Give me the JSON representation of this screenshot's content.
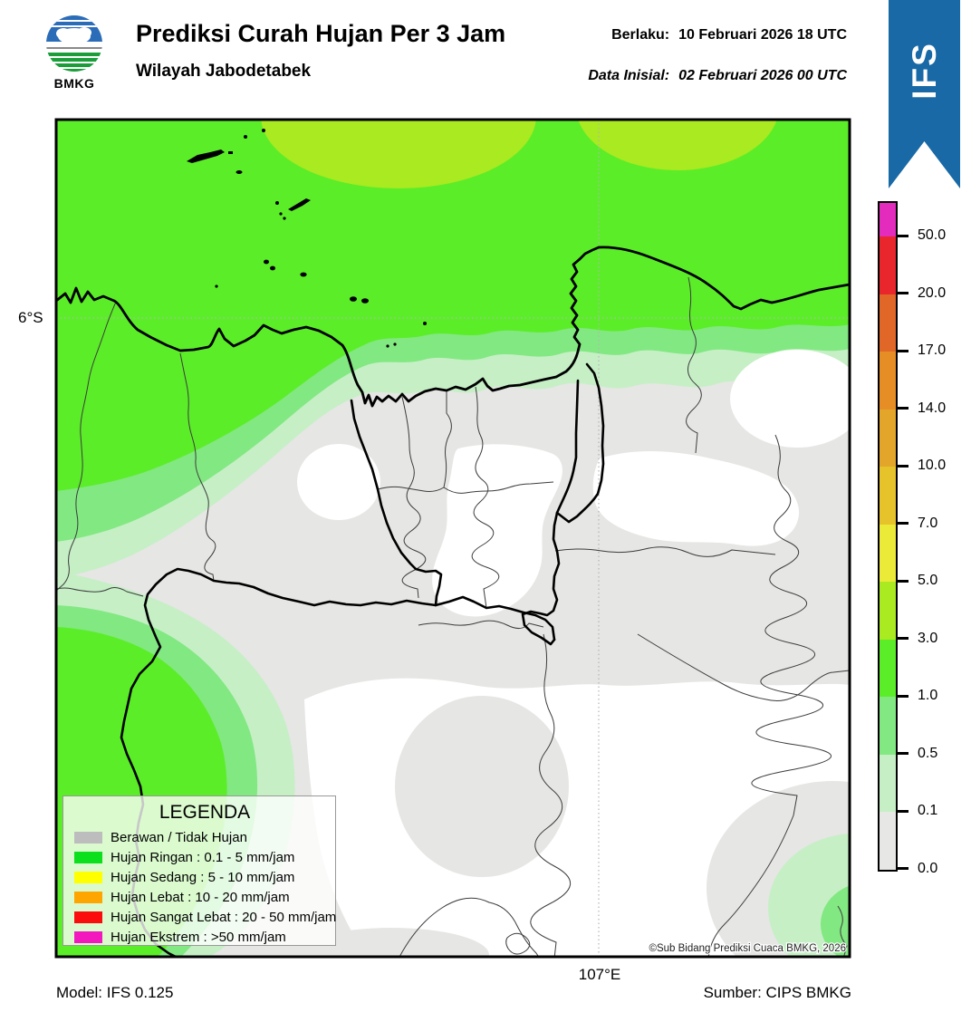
{
  "header": {
    "logo_text": "BMKG",
    "title": "Prediksi Curah Hujan Per 3 Jam",
    "subtitle": "Wilayah Jabodetabek",
    "valid_label": "Berlaku:",
    "valid_value": "10 Februari 2026 18 UTC",
    "initial_label": "Data Inisial:",
    "initial_value": "02 Februari 2026 00 UTC",
    "ribbon_label": "IFS",
    "ribbon_color": "#1969A6"
  },
  "map": {
    "lat_tick": "6°S",
    "lon_tick": "107°E",
    "copyright": "©Sub Bidang Prediksi Cuaca BMKG, 2026",
    "fill_colors": {
      "none": "#FFFFFF",
      "cloud_gray": "#E6E6E4",
      "rain_01_05": "#C6EFC6",
      "rain_05_1": "#82E882",
      "rain_1_3": "#5BED28",
      "rain_3_5": "#A9EA20"
    }
  },
  "colorbar": {
    "unit": "mm/jam",
    "segments": [
      {
        "color": "#E32BBE"
      },
      {
        "color": "#E8262C"
      },
      {
        "color": "#E06728"
      },
      {
        "color": "#E68D26"
      },
      {
        "color": "#E3A62B"
      },
      {
        "color": "#E6C22B"
      },
      {
        "color": "#ECEA39"
      },
      {
        "color": "#A9EA20"
      },
      {
        "color": "#5BED28"
      },
      {
        "color": "#82E882"
      },
      {
        "color": "#C6EFC6"
      },
      {
        "color": "#E7E7E6"
      }
    ],
    "ticks": [
      "50.0",
      "20.0",
      "17.0",
      "14.0",
      "10.0",
      "7.0",
      "5.0",
      "3.0",
      "1.0",
      "0.5",
      "0.1",
      "0.0"
    ]
  },
  "legend": {
    "title": "LEGENDA",
    "items": [
      {
        "color": "#BDBDBD",
        "label": "Berawan / Tidak Hujan"
      },
      {
        "color": "#0CE01C",
        "label": "Hujan Ringan : 0.1 - 5 mm/jam"
      },
      {
        "color": "#FFFF00",
        "label": "Hujan Sedang : 5 - 10 mm/jam"
      },
      {
        "color": "#FFA500",
        "label": "Hujan Lebat : 10 - 20 mm/jam"
      },
      {
        "color": "#FB0D0D",
        "label": "Hujan Sangat Lebat : 20 - 50 mm/jam"
      },
      {
        "color": "#F318BE",
        "label": "Hujan Ekstrem : >50 mm/jam"
      }
    ]
  },
  "footer": {
    "model": "Model: IFS 0.125",
    "source": "Sumber: CIPS BMKG"
  }
}
